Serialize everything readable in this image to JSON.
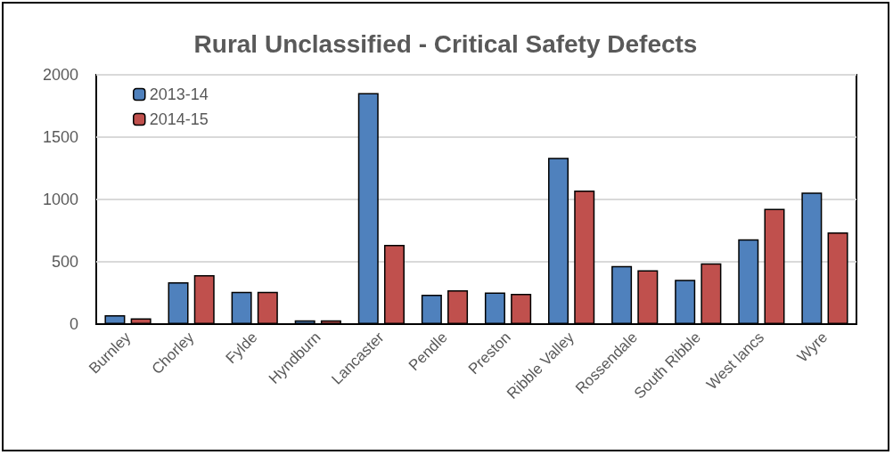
{
  "chart_data": {
    "type": "bar",
    "title": "Rural Unclassified - Critical Safety Defects",
    "categories": [
      "Burnley",
      "Chorley",
      "Fylde",
      "Hyndburn",
      "Lancaster",
      "Pendle",
      "Preston",
      "Ribble Valley",
      "Rossendale",
      "South Ribble",
      "West lancs",
      "Wyre"
    ],
    "series": [
      {
        "name": "2013-14",
        "color": "#4f81bd",
        "values": [
          71,
          336,
          259,
          31,
          1854,
          235,
          254,
          1334,
          466,
          355,
          680,
          1056
        ]
      },
      {
        "name": "2014-15",
        "color": "#c0504d",
        "values": [
          47,
          393,
          259,
          31,
          635,
          271,
          242,
          1071,
          433,
          487,
          925,
          736
        ]
      }
    ],
    "ylim": [
      0,
      2000
    ],
    "yticks": [
      0,
      500,
      1000,
      1500,
      2000
    ],
    "grid": "y",
    "legend": "top left"
  }
}
